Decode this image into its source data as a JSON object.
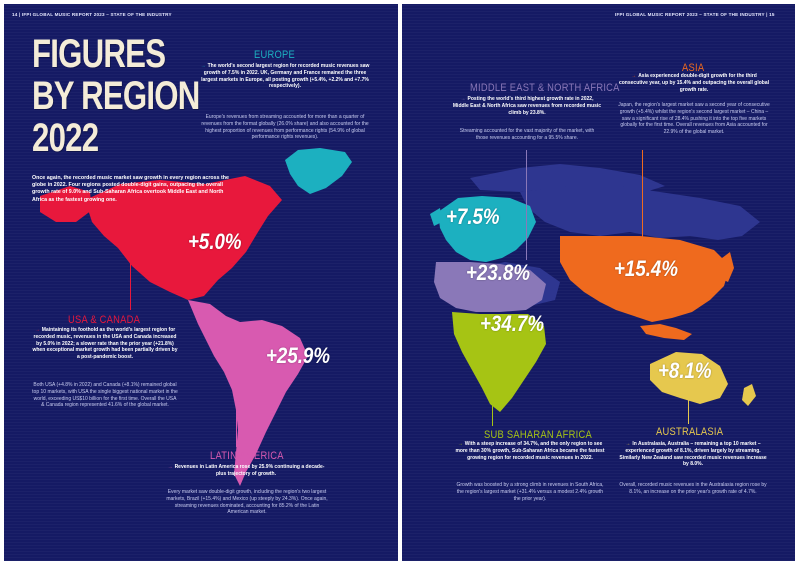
{
  "header": {
    "left": "14  |  IFPI GLOBAL MUSIC REPORT 2023 – STATE OF THE INDUSTRY",
    "right": "IFPI GLOBAL MUSIC REPORT 2023 – STATE OF THE INDUSTRY  |  15"
  },
  "title": {
    "line1": "FIGURES",
    "line2": "BY REGION",
    "line3": "2022"
  },
  "intro": "Once again, the recorded music market saw growth in every region across the globe in 2022. Four regions posted double-digit gains, outpacing the overall growth rate of 9.0% and Sub-Saharan Africa overtook Middle East and North Africa as the fastest growing one.",
  "colors": {
    "background": "#151a64",
    "usa_canada": "#e8183c",
    "latin_america": "#d85ab0",
    "europe": "#1cb0c0",
    "mena": "#8a78b8",
    "sub_saharan": "#a6c414",
    "asia": "#ef6a1e",
    "australasia": "#e6c84e",
    "other_land": "#2e3690"
  },
  "regions": {
    "usa_canada": {
      "name": "USA & CANADA",
      "growth": "+5.0%",
      "highlight": "Maintaining its foothold as the world's largest region for recorded music, revenues in the USA and Canada increased by 5.0% in 2022; a slower rate than the prior year (+21.8%) when exceptional market growth had been partially driven by a post-pandemic boost.",
      "body": "Both USA (+4.8% in 2022) and Canada (+8.1%) remained global top 10 markets, with USA the single biggest national market in the world, exceeding US$10 billion for the first time. Overall the USA & Canada region represented 41.6% of the global market."
    },
    "latin_america": {
      "name": "LATIN AMERICA",
      "growth": "+25.9%",
      "highlight": "Revenues in Latin America rose by 25.9% continuing a decade-plus trajectory of growth.",
      "body": "Every market saw double-digit growth, including the region's two largest markets, Brazil (+15.4%) and Mexico (up steeply by 24.3%). Once again, streaming revenues dominated, accounting for 85.2% of the Latin American market."
    },
    "europe": {
      "name": "EUROPE",
      "growth": "+7.5%",
      "highlight": "The world's second largest region for recorded music revenues saw growth of 7.5% in 2022. UK, Germany and France remained the three largest markets in Europe, all posting growth (+5.4%, +2.2% and +7.7% respectively).",
      "body": "Europe's revenues from streaming accounted for more than a quarter of revenues from the format globally (26.0% share) and also accounted for the highest proportion of revenues from performance rights (54.9% of global performance rights revenues)."
    },
    "mena": {
      "name": "MIDDLE EAST & NORTH AFRICA",
      "growth": "+23.8%",
      "highlight": "Posting the world's third highest growth rate in 2022, Middle East & North Africa saw revenues from recorded music climb by 23.8%.",
      "body": "Streaming accounted for the vast majority of the market, with those revenues accounting for a 95.5% share."
    },
    "sub_saharan": {
      "name": "SUB SAHARAN AFRICA",
      "growth": "+34.7%",
      "highlight": "With a steep increase of 34.7%, and the only region to see more than 30% growth, Sub-Saharan Africa became the fastest growing region for recorded music revenues in 2022.",
      "body": "Growth was boosted by a strong climb in revenues in South Africa, the region's largest market (+31.4% versus a modest 2.4% growth the prior year)."
    },
    "asia": {
      "name": "ASIA",
      "growth": "+15.4%",
      "highlight": "Asia experienced double-digit growth for the third consecutive year, up by 15.4% and outpacing the overall global growth rate.",
      "body": "Japan, the region's largest market saw a second year of consecutive growth (+5.4%) whilst the region's second largest market – China – saw a significant rise of 28.4% pushing it into the top five markets globally for the first time. Overall revenues from Asia accounted for 22.9% of the global market."
    },
    "australasia": {
      "name": "AUSTRALASIA",
      "growth": "+8.1%",
      "highlight": "In Australasia, Australia – remaining a top 10 market – experienced growth of 8.1%, driven largely by streaming. Similarly New Zealand saw recorded music revenues increase by 8.0%.",
      "body": "Overall, recorded music revenues in the Australasia region rose by 8.1%, an increase on the prior year's growth rate of 4.7%."
    }
  }
}
